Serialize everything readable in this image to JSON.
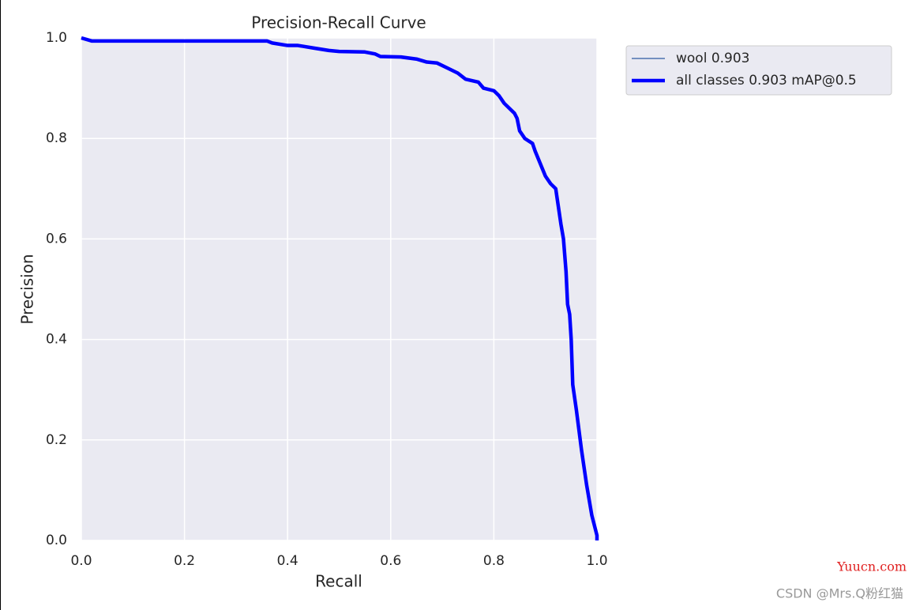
{
  "chart_data": {
    "type": "line",
    "title": "Precision-Recall Curve",
    "x_label": "Recall",
    "y_label": "Precision",
    "x": [
      0.0,
      0.02,
      0.36,
      0.37,
      0.4,
      0.42,
      0.45,
      0.48,
      0.5,
      0.55,
      0.57,
      0.58,
      0.62,
      0.65,
      0.67,
      0.69,
      0.71,
      0.73,
      0.745,
      0.77,
      0.78,
      0.8,
      0.81,
      0.82,
      0.84,
      0.845,
      0.85,
      0.86,
      0.875,
      0.88,
      0.89,
      0.9,
      0.91,
      0.92,
      0.925,
      0.93,
      0.935,
      0.94,
      0.943,
      0.947,
      0.95,
      0.953,
      0.96,
      0.97,
      0.98,
      0.99,
      1.0,
      1.0
    ],
    "series": [
      {
        "name": "wool 0.903",
        "color": "#4c72b0",
        "width": 1.5,
        "values": [
          1.0,
          0.994,
          0.994,
          0.99,
          0.985,
          0.985,
          0.98,
          0.975,
          0.973,
          0.972,
          0.968,
          0.963,
          0.962,
          0.958,
          0.952,
          0.95,
          0.94,
          0.93,
          0.918,
          0.912,
          0.9,
          0.895,
          0.885,
          0.87,
          0.85,
          0.84,
          0.815,
          0.8,
          0.79,
          0.775,
          0.75,
          0.725,
          0.71,
          0.7,
          0.665,
          0.63,
          0.6,
          0.535,
          0.47,
          0.45,
          0.4,
          0.31,
          0.26,
          0.18,
          0.11,
          0.05,
          0.01,
          0.0
        ]
      },
      {
        "name": "all classes 0.903 mAP@0.5",
        "color": "#0000ff",
        "width": 4.5,
        "values": [
          1.0,
          0.994,
          0.994,
          0.99,
          0.985,
          0.985,
          0.98,
          0.975,
          0.973,
          0.972,
          0.968,
          0.963,
          0.962,
          0.958,
          0.952,
          0.95,
          0.94,
          0.93,
          0.918,
          0.912,
          0.9,
          0.895,
          0.885,
          0.87,
          0.85,
          0.84,
          0.815,
          0.8,
          0.79,
          0.775,
          0.75,
          0.725,
          0.71,
          0.7,
          0.665,
          0.63,
          0.6,
          0.535,
          0.47,
          0.45,
          0.4,
          0.31,
          0.26,
          0.18,
          0.11,
          0.05,
          0.01,
          0.0
        ]
      }
    ],
    "xlim": [
      0,
      1
    ],
    "ylim": [
      0,
      1
    ],
    "xticks": [
      {
        "value": 0,
        "label": "0.0"
      },
      0.2,
      0.4,
      0.6,
      0.8,
      {
        "value": 1,
        "label": "1.0"
      }
    ],
    "yticks": [
      {
        "value": 0,
        "label": "0.0"
      },
      0.2,
      0.4,
      0.6,
      0.8,
      {
        "value": 1,
        "label": "1.0"
      }
    ],
    "grid": true,
    "legend": "outside-upper-right",
    "annotations": [
      "Yuucn.com",
      "CSDN @Mrs.Q粉红猫"
    ]
  }
}
